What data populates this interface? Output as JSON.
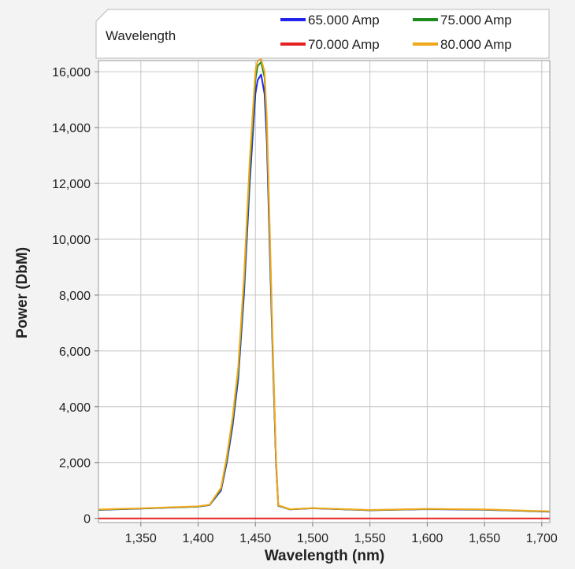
{
  "chart_data": {
    "type": "line",
    "legend_title": "Wavelength",
    "legend_placement": "top-right",
    "grid": true,
    "xlabel": "Wavelength (nm)",
    "ylabel": "Power (DbM)",
    "xlim": [
      1313,
      1707
    ],
    "ylim": [
      -150,
      16400
    ],
    "x_ticks": [
      "1,350",
      "1,400",
      "1,450",
      "1,500",
      "1,550",
      "1,600",
      "1,650",
      "1,700"
    ],
    "x_tick_values": [
      1350,
      1400,
      1450,
      1500,
      1550,
      1600,
      1650,
      1700
    ],
    "y_ticks": [
      "0",
      "2,000",
      "4,000",
      "6,000",
      "8,000",
      "10,000",
      "12,000",
      "14,000",
      "16,000"
    ],
    "y_tick_values": [
      0,
      2000,
      4000,
      6000,
      8000,
      10000,
      12000,
      14000,
      16000
    ],
    "series": [
      {
        "name": "65.000 Amp",
        "color": "#2323ee",
        "x": [
          1313,
          1350,
          1400,
          1410,
          1420,
          1425,
          1430,
          1435,
          1440,
          1445,
          1450,
          1452,
          1455,
          1458,
          1460,
          1463,
          1465,
          1468,
          1470,
          1480,
          1500,
          1550,
          1600,
          1650,
          1707
        ],
        "y": [
          300,
          350,
          420,
          480,
          1000,
          2000,
          3300,
          5000,
          8000,
          12000,
          15200,
          15700,
          15900,
          15200,
          13500,
          9000,
          6000,
          2000,
          450,
          320,
          360,
          290,
          330,
          310,
          240
        ]
      },
      {
        "name": "70.000 Amp",
        "color": "#e52222",
        "x": [
          1313,
          1707
        ],
        "y": [
          0,
          0
        ]
      },
      {
        "name": "75.000 Amp",
        "color": "#1f8a1f",
        "x": [
          1313,
          1350,
          1400,
          1410,
          1420,
          1425,
          1430,
          1435,
          1440,
          1445,
          1450,
          1452,
          1455,
          1458,
          1460,
          1463,
          1465,
          1468,
          1470,
          1480,
          1500,
          1550,
          1600,
          1650,
          1707
        ],
        "y": [
          310,
          355,
          425,
          485,
          1050,
          2100,
          3450,
          5200,
          8300,
          12400,
          15700,
          16200,
          16350,
          15800,
          14000,
          9400,
          6200,
          2100,
          460,
          325,
          365,
          295,
          335,
          315,
          245
        ]
      },
      {
        "name": "80.000 Amp",
        "color": "#f2a71b",
        "x": [
          1313,
          1350,
          1400,
          1410,
          1420,
          1425,
          1430,
          1435,
          1440,
          1445,
          1450,
          1452,
          1455,
          1458,
          1460,
          1463,
          1465,
          1468,
          1470,
          1480,
          1500,
          1550,
          1600,
          1650,
          1707
        ],
        "y": [
          320,
          360,
          430,
          490,
          1100,
          2200,
          3600,
          5400,
          8600,
          12800,
          16000,
          16400,
          16450,
          16000,
          14300,
          9700,
          6400,
          2200,
          470,
          330,
          370,
          300,
          340,
          320,
          250
        ]
      }
    ]
  }
}
